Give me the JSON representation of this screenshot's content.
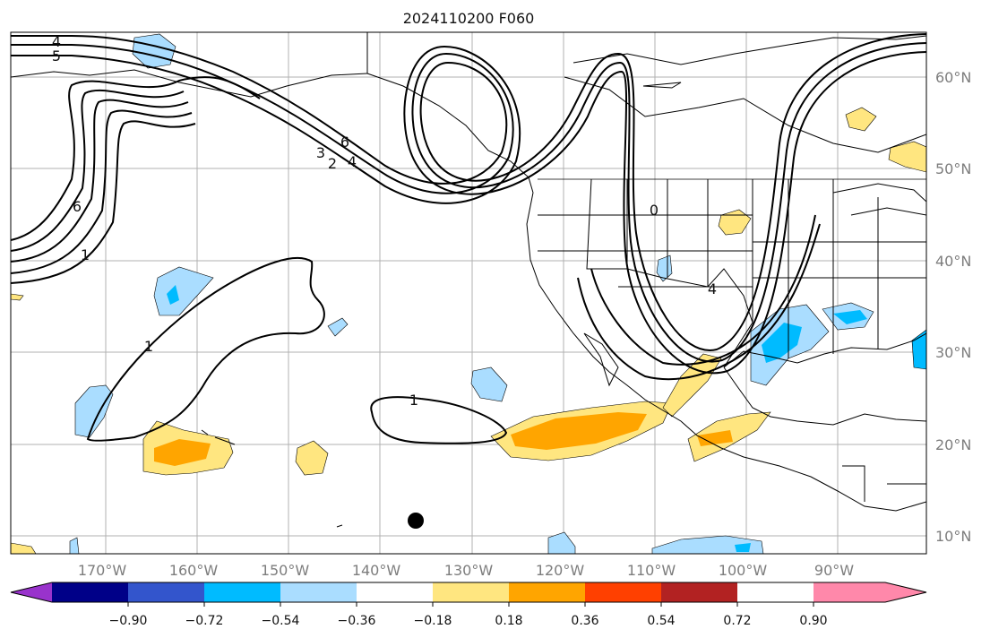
{
  "title": "2024110200 F060",
  "map": {
    "lat_labels": [
      "60°N",
      "50°N",
      "40°N",
      "30°N",
      "20°N",
      "10°N"
    ],
    "lon_labels": [
      "170°W",
      "160°W",
      "150°W",
      "140°W",
      "130°W",
      "120°W",
      "110°W",
      "100°W",
      "90°W"
    ],
    "contour_labels": [
      "4",
      "5",
      "6",
      "1",
      "6",
      "3",
      "2",
      "4",
      "1",
      "1",
      "0",
      "4"
    ],
    "colors": {
      "land_line": "#000000",
      "grid": "#b0b0b0",
      "contour": "#000000"
    }
  },
  "colorbar": {
    "labels": [
      "−0.90",
      "−0.72",
      "−0.54",
      "−0.36",
      "−0.18",
      "0.18",
      "0.36",
      "0.54",
      "0.72",
      "0.90"
    ],
    "colors": [
      "#9933cc",
      "#000088",
      "#3355cc",
      "#00bbff",
      "#aaddff",
      "#ffffff",
      "#ffe680",
      "#ffa500",
      "#ff4000",
      "#b22222",
      "#ff88aa"
    ]
  }
}
